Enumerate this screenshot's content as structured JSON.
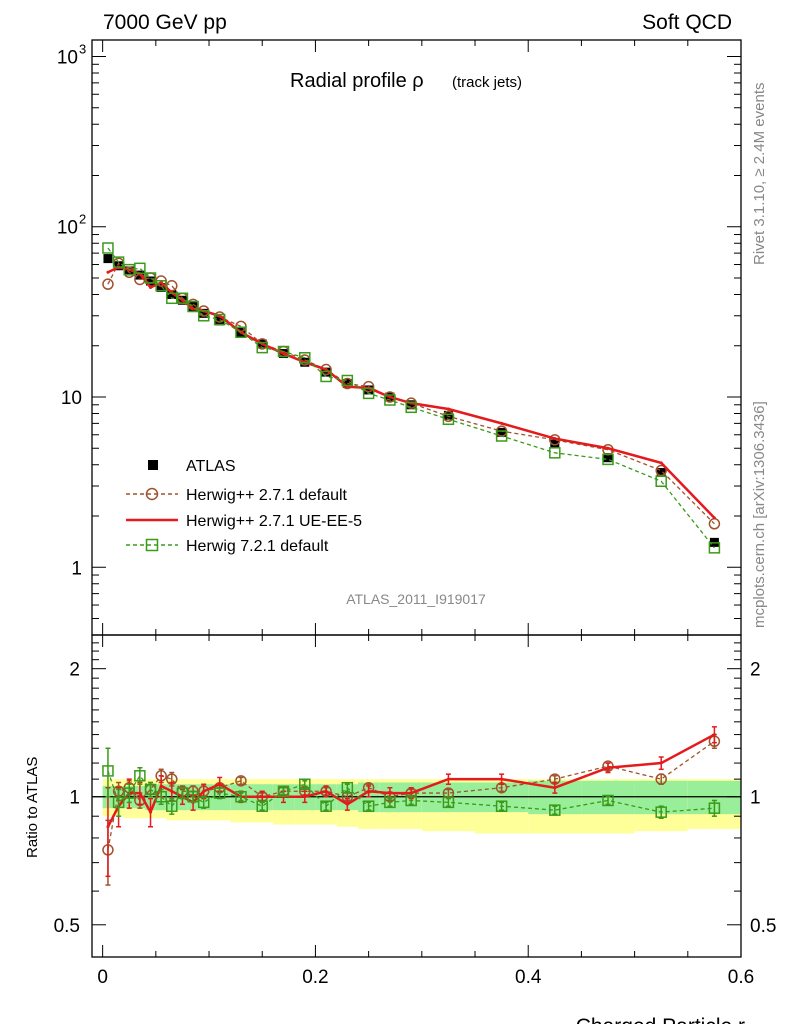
{
  "header": {
    "left": "7000 GeV pp",
    "right": "Soft QCD"
  },
  "side_labels": {
    "rivet": "Rivet 3.1.10, ≥ 2.4M events",
    "mcplots": "mcplots.cern.ch [arXiv:1306.3436]"
  },
  "analysis_id": "ATLAS_2011_I919017",
  "chart_data": {
    "type": "line",
    "title": "Radial profile ρ",
    "title_suffix": "(track jets)",
    "xlabel": "Charged Particle r",
    "ratio_ylabel": "Ratio to ATLAS",
    "xlim": [
      -0.01,
      0.6
    ],
    "ylim_main": [
      0.4,
      1250
    ],
    "ylim_ratio": [
      0.42,
      2.4
    ],
    "main_y_ticks": [
      {
        "value": 1000,
        "label": "10",
        "exp": "3"
      },
      {
        "value": 100,
        "label": "10",
        "exp": "2"
      },
      {
        "value": 10,
        "label": "10",
        "exp": ""
      },
      {
        "value": 1,
        "label": "1",
        "exp": ""
      }
    ],
    "ratio_y_ticks": [
      {
        "value": 2,
        "label": "2"
      },
      {
        "value": 1,
        "label": "1"
      },
      {
        "value": 0.5,
        "label": "0.5"
      }
    ],
    "x_ticks": [
      {
        "value": 0,
        "label": "0"
      },
      {
        "value": 0.2,
        "label": "0.2"
      },
      {
        "value": 0.4,
        "label": "0.4"
      },
      {
        "value": 0.6,
        "label": "0.6"
      }
    ],
    "x": [
      0.005,
      0.015,
      0.025,
      0.035,
      0.045,
      0.055,
      0.065,
      0.075,
      0.085,
      0.095,
      0.11,
      0.13,
      0.15,
      0.17,
      0.19,
      0.21,
      0.23,
      0.25,
      0.27,
      0.29,
      0.325,
      0.375,
      0.425,
      0.475,
      0.525,
      0.575
    ],
    "x_edges": [
      0,
      0.01,
      0.02,
      0.03,
      0.04,
      0.05,
      0.06,
      0.07,
      0.08,
      0.09,
      0.1,
      0.12,
      0.14,
      0.16,
      0.18,
      0.2,
      0.22,
      0.24,
      0.26,
      0.28,
      0.3,
      0.35,
      0.4,
      0.45,
      0.5,
      0.55,
      0.6
    ],
    "legend": [
      {
        "name": "ATLAS",
        "style": "data"
      },
      {
        "name": "Herwig++ 2.7.1 default",
        "style": "circle"
      },
      {
        "name": "Herwig++ 2.7.1 UE-EE-5",
        "style": "line"
      },
      {
        "name": "Herwig 7.2.1 default",
        "style": "square"
      }
    ],
    "data": {
      "name": "ATLAS",
      "values": [
        65,
        59,
        55,
        52,
        48,
        44,
        40,
        37,
        34,
        31,
        28,
        24,
        20.5,
        18,
        16,
        14,
        12,
        11,
        10,
        9,
        7.8,
        6.2,
        5.3,
        4.4,
        3.6,
        1.4
      ],
      "band_inner": [
        [
          0.94,
          1.06
        ],
        [
          0.94,
          1.06
        ],
        [
          0.94,
          1.06
        ],
        [
          0.94,
          1.06
        ],
        [
          0.93,
          1.07
        ],
        [
          0.93,
          1.07
        ],
        [
          0.93,
          1.07
        ],
        [
          0.93,
          1.07
        ],
        [
          0.93,
          1.07
        ],
        [
          0.93,
          1.07
        ],
        [
          0.93,
          1.07
        ],
        [
          0.93,
          1.07
        ],
        [
          0.93,
          1.07
        ],
        [
          0.93,
          1.07
        ],
        [
          0.93,
          1.07
        ],
        [
          0.93,
          1.07
        ],
        [
          0.93,
          1.07
        ],
        [
          0.92,
          1.08
        ],
        [
          0.92,
          1.08
        ],
        [
          0.92,
          1.08
        ],
        [
          0.92,
          1.08
        ],
        [
          0.92,
          1.08
        ],
        [
          0.91,
          1.09
        ],
        [
          0.91,
          1.09
        ],
        [
          0.91,
          1.09
        ],
        [
          0.91,
          1.09
        ]
      ],
      "band_outer": [
        [
          0.9,
          1.1
        ],
        [
          0.9,
          1.1
        ],
        [
          0.89,
          1.1
        ],
        [
          0.89,
          1.1
        ],
        [
          0.89,
          1.1
        ],
        [
          0.89,
          1.1
        ],
        [
          0.88,
          1.1
        ],
        [
          0.88,
          1.1
        ],
        [
          0.88,
          1.1
        ],
        [
          0.88,
          1.1
        ],
        [
          0.88,
          1.1
        ],
        [
          0.87,
          1.1
        ],
        [
          0.87,
          1.1
        ],
        [
          0.86,
          1.1
        ],
        [
          0.86,
          1.1
        ],
        [
          0.86,
          1.1
        ],
        [
          0.85,
          1.1
        ],
        [
          0.84,
          1.1
        ],
        [
          0.84,
          1.1
        ],
        [
          0.84,
          1.1
        ],
        [
          0.83,
          1.1
        ],
        [
          0.82,
          1.1
        ],
        [
          0.82,
          1.1
        ],
        [
          0.82,
          1.1
        ],
        [
          0.83,
          1.1
        ],
        [
          0.84,
          1.1
        ]
      ]
    },
    "series": [
      {
        "name": "Herwig++ 2.7.1 default",
        "color": "#a0522d",
        "style": "circle",
        "values": [
          46,
          61,
          54,
          49,
          50,
          48,
          45,
          38,
          35,
          32,
          29.5,
          26,
          20.5,
          18.5,
          16.5,
          14.5,
          12,
          11.5,
          10,
          9.2,
          7.7,
          6.3,
          5.6,
          4.9,
          3.7,
          1.8
        ],
        "ratio": [
          0.75,
          1.03,
          1.05,
          0.98,
          1.04,
          1.12,
          1.1,
          1.03,
          1.03,
          1.03,
          1.05,
          1.09,
          1.0,
          1.03,
          1.03,
          1.03,
          1.0,
          1.05,
          1.0,
          1.02,
          1.02,
          1.05,
          1.1,
          1.18,
          1.1,
          1.35
        ],
        "ratio_err": [
          0.13,
          0.05,
          0.04,
          0.04,
          0.04,
          0.04,
          0.04,
          0.03,
          0.03,
          0.03,
          0.02,
          0.02,
          0.02,
          0.02,
          0.02,
          0.02,
          0.02,
          0.02,
          0.02,
          0.02,
          0.02,
          0.02,
          0.02,
          0.02,
          0.03,
          0.05
        ]
      },
      {
        "name": "Herwig++ 2.7.1 UE-EE-5",
        "color": "#e41a1c",
        "style": "line",
        "values": [
          54,
          58,
          56,
          53,
          44,
          47,
          41,
          37,
          33,
          32,
          30,
          24,
          20.5,
          18,
          16,
          14.5,
          11.5,
          11.3,
          10,
          9.2,
          8.5,
          7,
          5.7,
          5,
          4.1,
          1.95
        ],
        "ratio": [
          0.85,
          0.95,
          1.02,
          1.02,
          0.92,
          1.06,
          1.03,
          1.0,
          0.97,
          1.03,
          1.07,
          1.0,
          1.0,
          1.0,
          1.0,
          1.03,
          0.96,
          1.03,
          1.02,
          1.02,
          1.1,
          1.1,
          1.05,
          1.17,
          1.2,
          1.4
        ],
        "ratio_err": [
          0.2,
          0.1,
          0.08,
          0.06,
          0.07,
          0.06,
          0.05,
          0.04,
          0.04,
          0.04,
          0.04,
          0.03,
          0.03,
          0.03,
          0.03,
          0.03,
          0.03,
          0.03,
          0.03,
          0.03,
          0.03,
          0.03,
          0.03,
          0.03,
          0.04,
          0.06
        ]
      },
      {
        "name": "Herwig 7.2.1 default",
        "color": "#3a9a1a",
        "style": "square",
        "values": [
          75,
          62,
          56,
          57,
          50,
          45,
          38,
          38,
          34,
          30,
          28.5,
          24,
          19.5,
          18.5,
          17,
          13.2,
          12.5,
          10.5,
          9.6,
          8.7,
          7.4,
          5.9,
          4.7,
          4.3,
          3.2,
          1.3
        ],
        "ratio": [
          1.15,
          0.97,
          1.02,
          1.12,
          1.04,
          1.0,
          0.95,
          1.02,
          1.0,
          0.97,
          1.02,
          1.0,
          0.95,
          1.03,
          1.07,
          0.95,
          1.05,
          0.95,
          0.97,
          0.98,
          0.97,
          0.95,
          0.93,
          0.98,
          0.92,
          0.94
        ],
        "ratio_err": [
          0.15,
          0.07,
          0.05,
          0.05,
          0.04,
          0.04,
          0.04,
          0.03,
          0.03,
          0.03,
          0.03,
          0.02,
          0.02,
          0.02,
          0.02,
          0.02,
          0.02,
          0.02,
          0.02,
          0.02,
          0.02,
          0.02,
          0.02,
          0.02,
          0.03,
          0.04
        ]
      }
    ]
  }
}
